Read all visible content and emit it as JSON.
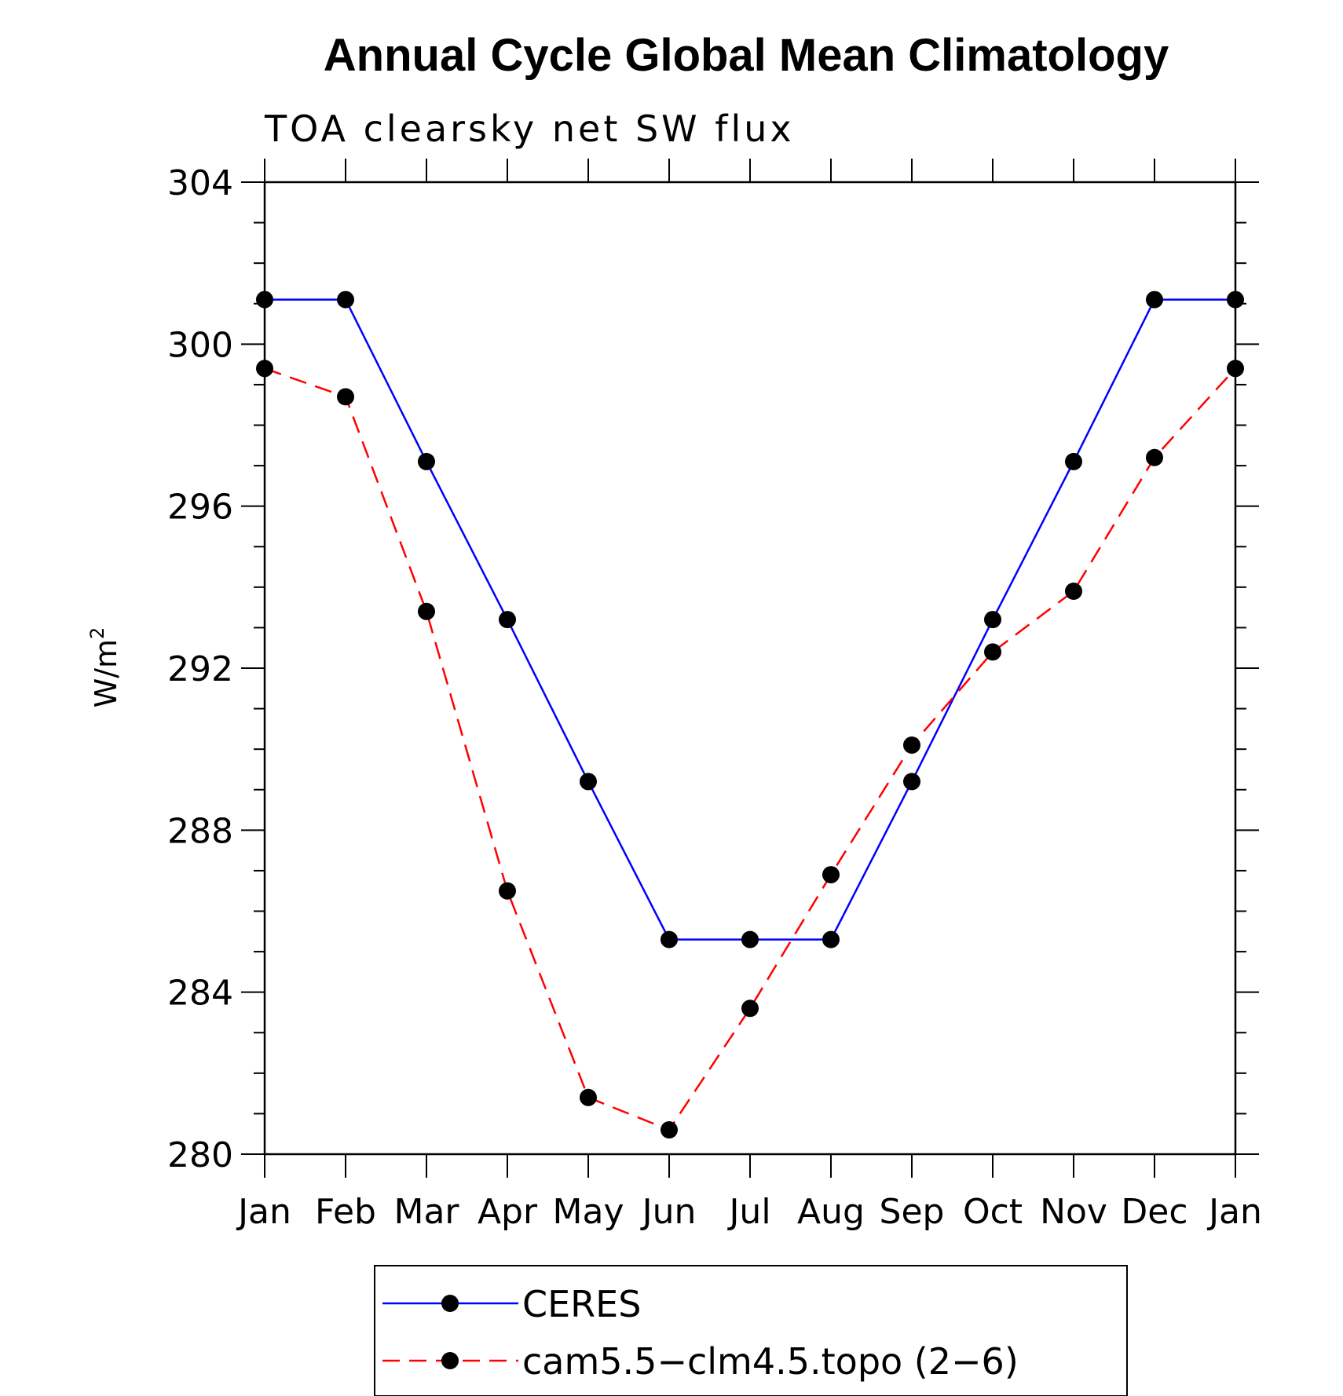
{
  "chart_data": {
    "type": "line",
    "title": "Annual Cycle Global Mean Climatology",
    "subtitle": "TOA clearsky net SW flux",
    "ylabel_base": "W/m",
    "ylabel_sup": "2",
    "xlabel": "",
    "categories": [
      "Jan",
      "Feb",
      "Mar",
      "Apr",
      "May",
      "Jun",
      "Jul",
      "Aug",
      "Sep",
      "Oct",
      "Nov",
      "Dec",
      "Jan"
    ],
    "yticks": [
      "280",
      "284",
      "288",
      "292",
      "296",
      "300",
      "304"
    ],
    "ylim": [
      280,
      304
    ],
    "series": [
      {
        "name": "CERES",
        "color": "#0000ff",
        "dash": "solid",
        "values": [
          301.1,
          301.1,
          297.1,
          293.2,
          289.2,
          285.3,
          285.3,
          285.3,
          289.2,
          293.2,
          297.1,
          301.1,
          301.1
        ]
      },
      {
        "name": "cam5.5−clm4.5.topo (2−6)",
        "color": "#ff0000",
        "dash": "dashed",
        "values": [
          299.4,
          298.7,
          293.4,
          286.5,
          281.4,
          280.6,
          283.6,
          286.9,
          290.1,
          292.4,
          293.9,
          297.2,
          299.4
        ]
      }
    ],
    "legend_position": "bottom"
  }
}
